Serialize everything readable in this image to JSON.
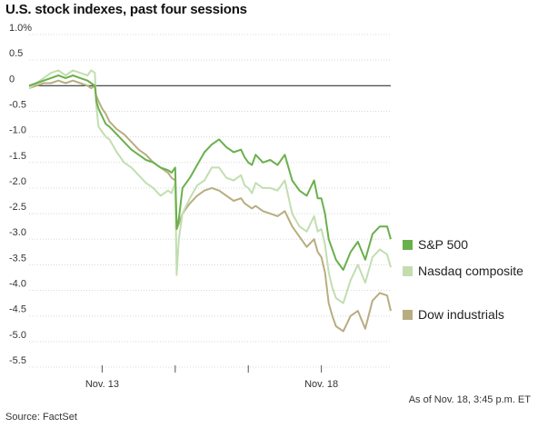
{
  "chart_data": {
    "type": "line",
    "title": "U.S. stock indexes, past four sessions",
    "ylabel": "",
    "xlabel": "",
    "ylim": [
      -5.5,
      1.0
    ],
    "y_ticks": [
      "1.0%",
      "0.5",
      "0",
      "-0.5",
      "-1.0",
      "-1.5",
      "-2.0",
      "-2.5",
      "-3.0",
      "-3.5",
      "-4.0",
      "-4.5",
      "-5.0",
      "-5.5"
    ],
    "y_tick_values": [
      1.0,
      0.5,
      0,
      -0.5,
      -1.0,
      -1.5,
      -2.0,
      -2.5,
      -3.0,
      -3.5,
      -4.0,
      -4.5,
      -5.0,
      -5.5
    ],
    "x_tick_labels": [
      {
        "label": "Nov. 13",
        "x": 1.0
      },
      {
        "label": "",
        "x": 2.0
      },
      {
        "label": "",
        "x": 3.0
      },
      {
        "label": "Nov. 18",
        "x": 4.0
      }
    ],
    "xlim": [
      0.0,
      4.95
    ],
    "series": [
      {
        "name": "S&P 500",
        "color": "#6ab04c",
        "x": [
          0.0,
          0.1,
          0.2,
          0.3,
          0.4,
          0.5,
          0.6,
          0.7,
          0.8,
          0.85,
          0.9,
          0.92,
          0.95,
          1.0,
          1.05,
          1.1,
          1.2,
          1.3,
          1.4,
          1.5,
          1.6,
          1.7,
          1.8,
          1.9,
          1.95,
          2.0,
          2.02,
          2.05,
          2.1,
          2.2,
          2.3,
          2.4,
          2.5,
          2.6,
          2.7,
          2.8,
          2.9,
          2.95,
          3.0,
          3.05,
          3.1,
          3.2,
          3.3,
          3.4,
          3.5,
          3.6,
          3.7,
          3.8,
          3.9,
          3.95,
          4.0,
          4.05,
          4.1,
          4.15,
          4.2,
          4.3,
          4.4,
          4.5,
          4.6,
          4.7,
          4.8,
          4.9,
          4.95
        ],
        "values": [
          0.0,
          0.05,
          0.1,
          0.15,
          0.2,
          0.15,
          0.2,
          0.15,
          0.1,
          0.05,
          0.0,
          -0.3,
          -0.45,
          -0.6,
          -0.75,
          -0.8,
          -0.95,
          -1.1,
          -1.25,
          -1.35,
          -1.45,
          -1.5,
          -1.6,
          -1.65,
          -1.7,
          -1.6,
          -2.8,
          -2.6,
          -2.0,
          -1.8,
          -1.55,
          -1.3,
          -1.15,
          -1.05,
          -1.2,
          -1.3,
          -1.25,
          -1.4,
          -1.5,
          -1.55,
          -1.35,
          -1.5,
          -1.45,
          -1.55,
          -1.35,
          -1.85,
          -2.05,
          -2.15,
          -1.85,
          -2.2,
          -2.2,
          -2.5,
          -3.0,
          -3.2,
          -3.4,
          -3.6,
          -3.25,
          -3.05,
          -3.4,
          -2.9,
          -2.75,
          -2.75,
          -3.0
        ]
      },
      {
        "name": "Nasdaq composite",
        "color": "#c2deb0",
        "x": [
          0.0,
          0.1,
          0.2,
          0.3,
          0.4,
          0.5,
          0.6,
          0.7,
          0.8,
          0.85,
          0.9,
          0.92,
          0.95,
          1.0,
          1.05,
          1.1,
          1.2,
          1.3,
          1.4,
          1.5,
          1.6,
          1.7,
          1.8,
          1.9,
          1.95,
          2.0,
          2.02,
          2.05,
          2.1,
          2.2,
          2.3,
          2.4,
          2.5,
          2.6,
          2.7,
          2.8,
          2.9,
          2.95,
          3.0,
          3.05,
          3.1,
          3.2,
          3.3,
          3.4,
          3.5,
          3.6,
          3.7,
          3.8,
          3.9,
          3.95,
          4.0,
          4.05,
          4.1,
          4.15,
          4.2,
          4.3,
          4.4,
          4.5,
          4.6,
          4.7,
          4.8,
          4.9,
          4.95
        ],
        "values": [
          -0.05,
          0.05,
          0.15,
          0.25,
          0.3,
          0.2,
          0.3,
          0.25,
          0.2,
          0.3,
          0.25,
          -0.4,
          -0.8,
          -0.9,
          -1.0,
          -1.05,
          -1.3,
          -1.5,
          -1.6,
          -1.75,
          -1.9,
          -2.0,
          -2.15,
          -2.05,
          -2.1,
          -1.9,
          -3.7,
          -3.0,
          -2.5,
          -2.2,
          -1.95,
          -1.85,
          -1.6,
          -1.6,
          -1.8,
          -1.85,
          -1.75,
          -1.95,
          -2.0,
          -2.1,
          -1.9,
          -2.0,
          -2.0,
          -2.05,
          -1.85,
          -2.5,
          -2.75,
          -2.85,
          -2.55,
          -2.85,
          -2.8,
          -3.1,
          -3.65,
          -3.95,
          -4.15,
          -4.25,
          -3.8,
          -3.5,
          -3.85,
          -3.35,
          -3.2,
          -3.3,
          -3.55
        ]
      },
      {
        "name": "Dow industrials",
        "color": "#b8ad81",
        "x": [
          0.0,
          0.1,
          0.2,
          0.3,
          0.4,
          0.5,
          0.6,
          0.7,
          0.8,
          0.85,
          0.9,
          0.92,
          0.95,
          1.0,
          1.05,
          1.1,
          1.2,
          1.3,
          1.4,
          1.5,
          1.6,
          1.7,
          1.8,
          1.9,
          1.95,
          2.0,
          2.02,
          2.05,
          2.1,
          2.2,
          2.3,
          2.4,
          2.5,
          2.6,
          2.7,
          2.8,
          2.9,
          2.95,
          3.0,
          3.05,
          3.1,
          3.2,
          3.3,
          3.4,
          3.5,
          3.6,
          3.7,
          3.8,
          3.9,
          3.95,
          4.0,
          4.05,
          4.1,
          4.15,
          4.2,
          4.3,
          4.4,
          4.5,
          4.6,
          4.7,
          4.8,
          4.9,
          4.95
        ],
        "values": [
          -0.05,
          0.0,
          0.05,
          0.05,
          0.1,
          0.05,
          0.1,
          0.05,
          0.0,
          -0.05,
          0.0,
          -0.2,
          -0.3,
          -0.45,
          -0.55,
          -0.7,
          -0.85,
          -0.95,
          -1.1,
          -1.25,
          -1.35,
          -1.5,
          -1.6,
          -1.7,
          -1.8,
          -1.85,
          -2.8,
          -2.7,
          -2.5,
          -2.3,
          -2.15,
          -2.05,
          -2.0,
          -2.05,
          -2.15,
          -2.25,
          -2.2,
          -2.3,
          -2.35,
          -2.4,
          -2.35,
          -2.45,
          -2.5,
          -2.55,
          -2.45,
          -2.75,
          -2.95,
          -3.15,
          -3.0,
          -3.25,
          -3.35,
          -3.65,
          -4.25,
          -4.5,
          -4.7,
          -4.8,
          -4.5,
          -4.4,
          -4.75,
          -4.2,
          -4.05,
          -4.1,
          -4.4
        ]
      }
    ],
    "legend_position": "right"
  },
  "footer": {
    "as_of": "As of Nov. 18, 3:45 p.m. ET",
    "source": "Source: FactSet"
  }
}
